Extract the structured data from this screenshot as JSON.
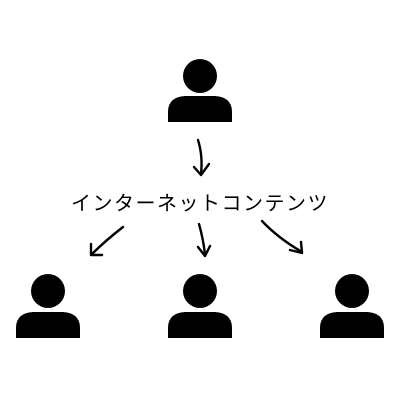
{
  "diagram": {
    "center_label": "インターネットコンテンツ",
    "colors": {
      "ink": "#000000",
      "background": "#ffffff"
    },
    "icons": {
      "source": "person-icon",
      "recipients": [
        "person-icon",
        "person-icon",
        "person-icon"
      ]
    }
  }
}
